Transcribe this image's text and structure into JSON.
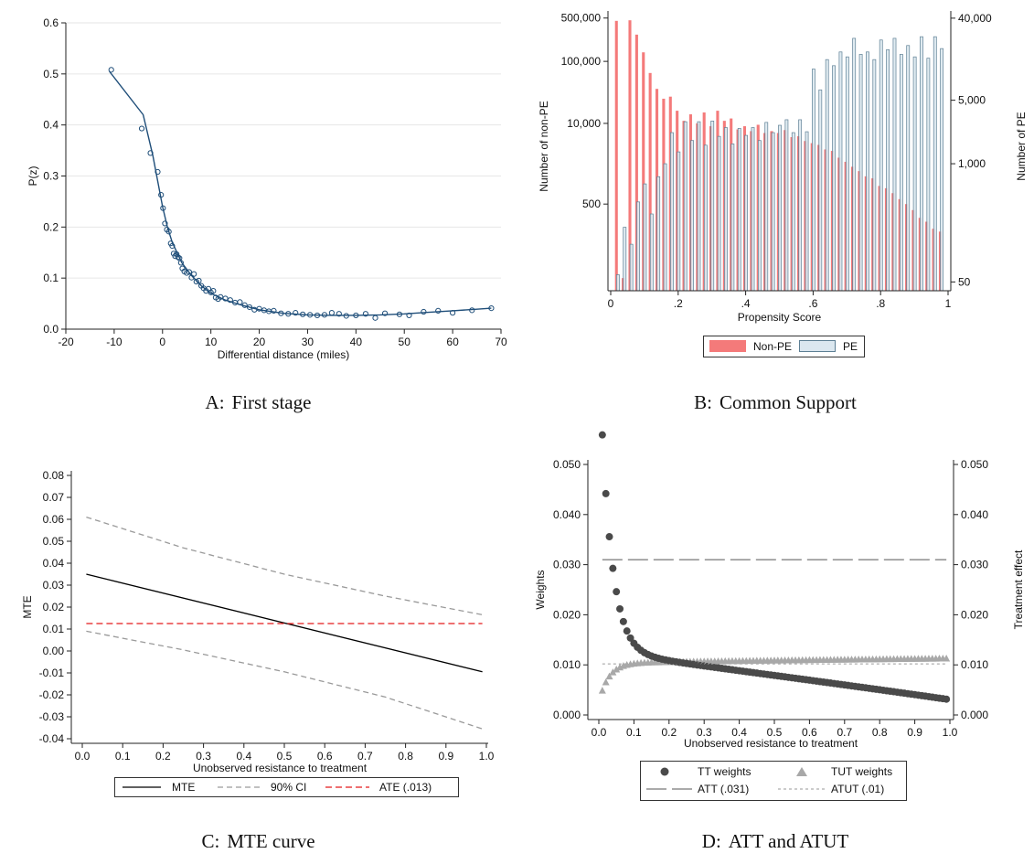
{
  "panels": [
    {
      "id": "A",
      "letter": "A:",
      "caption": "First stage"
    },
    {
      "id": "B",
      "letter": "B:",
      "caption": "Common Support"
    },
    {
      "id": "C",
      "letter": "C:",
      "caption": "MTE curve"
    },
    {
      "id": "D",
      "letter": "D:",
      "caption": "ATT and ATUT"
    }
  ],
  "chart_data": [
    {
      "type": "scatter",
      "panel": "A",
      "xlabel": "Differential distance (miles)",
      "ylabel": "P(z)",
      "xlim": [
        -20,
        70
      ],
      "ylim": [
        0,
        0.6
      ],
      "xticks": [
        -20,
        -10,
        0,
        10,
        20,
        30,
        40,
        50,
        60,
        70
      ],
      "yticks": [
        "0.0",
        "0.1",
        "0.2",
        "0.3",
        "0.4",
        "0.5",
        "0.6"
      ],
      "grid": true,
      "colors": {
        "points": "#1f4e79",
        "line": "#1f4e79"
      },
      "points": [
        [
          -10.6,
          0.508
        ],
        [
          -4.3,
          0.393
        ],
        [
          -2.5,
          0.345
        ],
        [
          -1.0,
          0.308
        ],
        [
          -0.3,
          0.263
        ],
        [
          0.1,
          0.237
        ],
        [
          0.5,
          0.207
        ],
        [
          0.9,
          0.195
        ],
        [
          1.3,
          0.191
        ],
        [
          1.7,
          0.168
        ],
        [
          2.0,
          0.163
        ],
        [
          2.3,
          0.148
        ],
        [
          2.6,
          0.143
        ],
        [
          2.9,
          0.147
        ],
        [
          3.2,
          0.141
        ],
        [
          3.5,
          0.139
        ],
        [
          3.8,
          0.13
        ],
        [
          4.1,
          0.119
        ],
        [
          4.5,
          0.113
        ],
        [
          5.0,
          0.11
        ],
        [
          5.5,
          0.112
        ],
        [
          6.0,
          0.101
        ],
        [
          6.5,
          0.108
        ],
        [
          7.0,
          0.093
        ],
        [
          7.5,
          0.095
        ],
        [
          8.0,
          0.085
        ],
        [
          8.5,
          0.08
        ],
        [
          9.0,
          0.075
        ],
        [
          9.5,
          0.079
        ],
        [
          10.0,
          0.072
        ],
        [
          10.5,
          0.075
        ],
        [
          11.0,
          0.062
        ],
        [
          11.5,
          0.059
        ],
        [
          12.0,
          0.063
        ],
        [
          13.0,
          0.06
        ],
        [
          14.0,
          0.057
        ],
        [
          15.0,
          0.052
        ],
        [
          16.0,
          0.053
        ],
        [
          17.0,
          0.047
        ],
        [
          18.0,
          0.043
        ],
        [
          19.0,
          0.038
        ],
        [
          20.0,
          0.04
        ],
        [
          21.0,
          0.037
        ],
        [
          22.0,
          0.035
        ],
        [
          23.0,
          0.036
        ],
        [
          24.5,
          0.031
        ],
        [
          26.0,
          0.03
        ],
        [
          27.5,
          0.032
        ],
        [
          29.0,
          0.029
        ],
        [
          30.5,
          0.028
        ],
        [
          32.0,
          0.027
        ],
        [
          33.5,
          0.028
        ],
        [
          35.0,
          0.032
        ],
        [
          36.5,
          0.03
        ],
        [
          38.0,
          0.026
        ],
        [
          40.0,
          0.027
        ],
        [
          42.0,
          0.03
        ],
        [
          44.0,
          0.022
        ],
        [
          46.0,
          0.031
        ],
        [
          49.0,
          0.029
        ],
        [
          51.0,
          0.027
        ],
        [
          54.0,
          0.034
        ],
        [
          57.0,
          0.036
        ],
        [
          60.0,
          0.032
        ],
        [
          64.0,
          0.037
        ],
        [
          68.0,
          0.041
        ]
      ],
      "fit_line": [
        [
          -11,
          0.505
        ],
        [
          -4,
          0.42
        ],
        [
          -2,
          0.34
        ],
        [
          0,
          0.24
        ],
        [
          1,
          0.2
        ],
        [
          2,
          0.17
        ],
        [
          4,
          0.13
        ],
        [
          6,
          0.105
        ],
        [
          8,
          0.085
        ],
        [
          10,
          0.07
        ],
        [
          13,
          0.057
        ],
        [
          16,
          0.048
        ],
        [
          20,
          0.038
        ],
        [
          25,
          0.031
        ],
        [
          30,
          0.028
        ],
        [
          35,
          0.027
        ],
        [
          40,
          0.027
        ],
        [
          45,
          0.028
        ],
        [
          50,
          0.03
        ],
        [
          55,
          0.033
        ],
        [
          60,
          0.036
        ],
        [
          65,
          0.039
        ],
        [
          68,
          0.041
        ]
      ]
    },
    {
      "type": "bar",
      "panel": "B",
      "xlabel": "Propensity Score",
      "ylabel_left": "Number of non-PE",
      "ylabel_right": "Number of PE",
      "xlim": [
        0,
        1
      ],
      "xticks": [
        "0",
        ".2",
        ".4",
        ".6",
        ".8",
        "1"
      ],
      "left_scale": "log",
      "left_ylim": [
        20,
        650000
      ],
      "left_yticks": [
        {
          "v": 500,
          "label": "500"
        },
        {
          "v": 10000,
          "label": "10,000"
        },
        {
          "v": 100000,
          "label": "100,000"
        },
        {
          "v": 500000,
          "label": "500,000"
        }
      ],
      "right_scale": "log",
      "right_ylim": [
        40,
        48000
      ],
      "right_yticks": [
        {
          "v": 50,
          "label": "50"
        },
        {
          "v": 1000,
          "label": "1,000"
        },
        {
          "v": 5000,
          "label": "5,000"
        },
        {
          "v": 40000,
          "label": "40,000"
        }
      ],
      "legend": [
        {
          "label": "Non-PE",
          "color": "#f47a7a"
        },
        {
          "label": "PE",
          "color": "#dbe7ef"
        }
      ],
      "legend_position": "bottom",
      "colors": {
        "non_pe": "#f47a7a",
        "pe_fill": "#dbe7ef",
        "pe_edge": "#5d7f94"
      },
      "bin_width": 0.02,
      "bin_centers": [
        0.02,
        0.04,
        0.06,
        0.08,
        0.1,
        0.12,
        0.14,
        0.16,
        0.18,
        0.2,
        0.22,
        0.24,
        0.26,
        0.28,
        0.3,
        0.32,
        0.34,
        0.36,
        0.38,
        0.4,
        0.42,
        0.44,
        0.46,
        0.48,
        0.5,
        0.52,
        0.54,
        0.56,
        0.58,
        0.6,
        0.62,
        0.64,
        0.66,
        0.68,
        0.7,
        0.72,
        0.74,
        0.76,
        0.78,
        0.8,
        0.82,
        0.84,
        0.86,
        0.88,
        0.9,
        0.92,
        0.94,
        0.96,
        0.98
      ],
      "non_pe": [
        450000,
        32,
        460000,
        270000,
        140000,
        65000,
        36000,
        25000,
        27000,
        16000,
        11000,
        14000,
        10000,
        15000,
        9000,
        16000,
        11000,
        12000,
        8000,
        9000,
        7500,
        9500,
        7000,
        7500,
        7000,
        7800,
        6000,
        6200,
        5200,
        4800,
        4500,
        3800,
        3600,
        2800,
        2400,
        2000,
        1700,
        1400,
        1300,
        980,
        900,
        750,
        600,
        500,
        400,
        300,
        260,
        200,
        180
      ],
      "pe": [
        60,
        200,
        130,
        380,
        600,
        280,
        720,
        1000,
        2200,
        1350,
        2900,
        1800,
        2900,
        1600,
        2950,
        2000,
        2500,
        1650,
        2450,
        2050,
        2500,
        1800,
        2850,
        2200,
        2650,
        3050,
        2200,
        3050,
        2250,
        11000,
        6500,
        14000,
        12000,
        17000,
        15000,
        24000,
        16000,
        17000,
        14000,
        23000,
        18000,
        24000,
        16000,
        20000,
        15000,
        25000,
        14500,
        25000,
        18500
      ]
    },
    {
      "type": "line",
      "panel": "C",
      "xlabel": "Unobserved resistance to treatment",
      "ylabel": "MTE",
      "xlim": [
        0,
        1
      ],
      "ylim": [
        -0.04,
        0.08
      ],
      "xticks": [
        "0.0",
        "0.1",
        "0.2",
        "0.3",
        "0.4",
        "0.5",
        "0.6",
        "0.7",
        "0.8",
        "0.9",
        "1.0"
      ],
      "yticks": [
        "-0.04",
        "-0.03",
        "-0.02",
        "-0.01",
        "0.00",
        "0.01",
        "0.02",
        "0.03",
        "0.04",
        "0.05",
        "0.06",
        "0.07",
        "0.08"
      ],
      "legend": [
        {
          "label": "MTE",
          "color": "#000000",
          "dash": ""
        },
        {
          "label": "90% CI",
          "color": "#9a9a9a",
          "dash": "6,4"
        },
        {
          "label": "ATE (.013)",
          "color": "#e41a1c",
          "dash": "7,4"
        }
      ],
      "legend_position": "bottom",
      "series": [
        {
          "name": "MTE",
          "x": [
            0.01,
            0.99
          ],
          "y": [
            0.035,
            -0.0095
          ]
        },
        {
          "name": "90% CI",
          "x": [
            0.01,
            0.25,
            0.5,
            0.75,
            0.99
          ],
          "y": [
            0.061,
            0.047,
            0.035,
            0.025,
            0.0165
          ]
        },
        {
          "name": "90% CI",
          "x": [
            0.01,
            0.25,
            0.5,
            0.75,
            0.99
          ],
          "y": [
            0.009,
            0.0005,
            -0.0095,
            -0.021,
            -0.0355
          ]
        },
        {
          "name": "ATE (.013)",
          "x": [
            0.01,
            0.99
          ],
          "y": [
            0.0125,
            0.0125
          ]
        }
      ]
    },
    {
      "type": "scatter",
      "panel": "D",
      "xlabel": "Unobserved resistance to treatment",
      "ylabel_left": "Weights",
      "ylabel_right": "Treatment effect",
      "xlim": [
        0,
        1
      ],
      "ylim": [
        0,
        0.05
      ],
      "xticks": [
        "0.0",
        "0.1",
        "0.2",
        "0.3",
        "0.4",
        "0.5",
        "0.6",
        "0.7",
        "0.8",
        "0.9",
        "1.0"
      ],
      "yticks": [
        "0.000",
        "0.010",
        "0.020",
        "0.030",
        "0.040",
        "0.050"
      ],
      "legend": [
        {
          "label": "TT weights",
          "color": "#4a4a4a",
          "marker": "circle"
        },
        {
          "label": "TUT weights",
          "color": "#a8a8a8",
          "marker": "triangle"
        },
        {
          "label": "ATT (.031)",
          "color": "#555555",
          "dash": "22,6"
        },
        {
          "label": "ATUT (.01)",
          "color": "#9a9a9a",
          "dash": "3,3"
        }
      ],
      "legend_position": "bottom",
      "series": [
        {
          "name": "TT weights",
          "x_start": 0.01,
          "x_step": 0.01,
          "count": 99
        },
        {
          "name": "TUT weights",
          "x_start": 0.01,
          "x_step": 0.01,
          "count": 99
        },
        {
          "name": "ATT (.031)",
          "y": 0.031
        },
        {
          "name": "ATUT (.01)",
          "y": 0.0102
        }
      ]
    }
  ]
}
